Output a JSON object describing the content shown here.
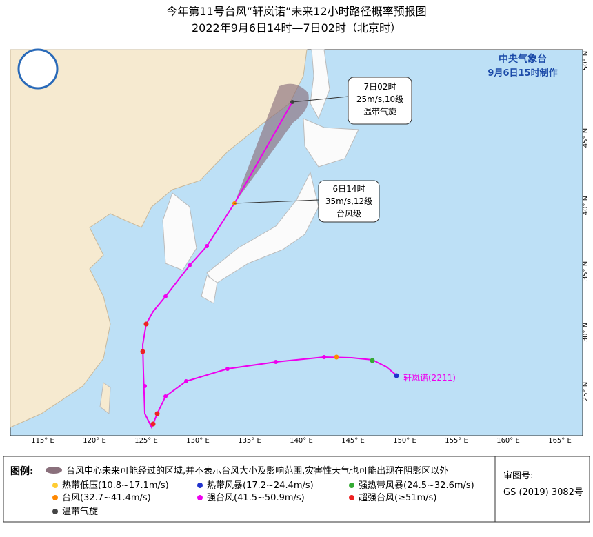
{
  "header": {
    "title": "今年第11号台风“轩岚诺”未来12小时路径概率预报图",
    "subtitle": "2022年9月6日14时—7日02时（北京时）"
  },
  "map": {
    "agency": "中央气象台",
    "issued": "9月6日15时制作",
    "lon_labels": [
      "115° E",
      "120° E",
      "125° E",
      "130° E",
      "135° E",
      "140° E",
      "145° E",
      "150° E",
      "155° E",
      "160° E",
      "165° E"
    ],
    "lat_labels": [
      "25° N",
      "30° N",
      "35° N",
      "40° N",
      "45° N",
      "50° N"
    ],
    "callouts": [
      [
        "7日02时",
        "25m/s,10级",
        "温带气旋"
      ],
      [
        "6日14时",
        "35m/s,12级",
        "台风级"
      ]
    ],
    "typhoon_label": "轩岚诺(2211)"
  },
  "legend": {
    "title": "图例:",
    "cone": "台风中心未来可能经过的区域,并不表示台风大小及影响范围,灾害性天气也可能出现在阴影区以外",
    "items": [
      "热带低压(10.8~17.1m/s)",
      "热带风暴(17.2~24.4m/s)",
      "强热带风暴(24.5~32.6m/s)",
      "台风(32.7~41.4m/s)",
      "强台风(41.5~50.9m/s)",
      "超强台风(≥51m/s)",
      "温带气旋"
    ],
    "approval_label": "审图号:",
    "approval": "GS (2019) 3082号"
  }
}
